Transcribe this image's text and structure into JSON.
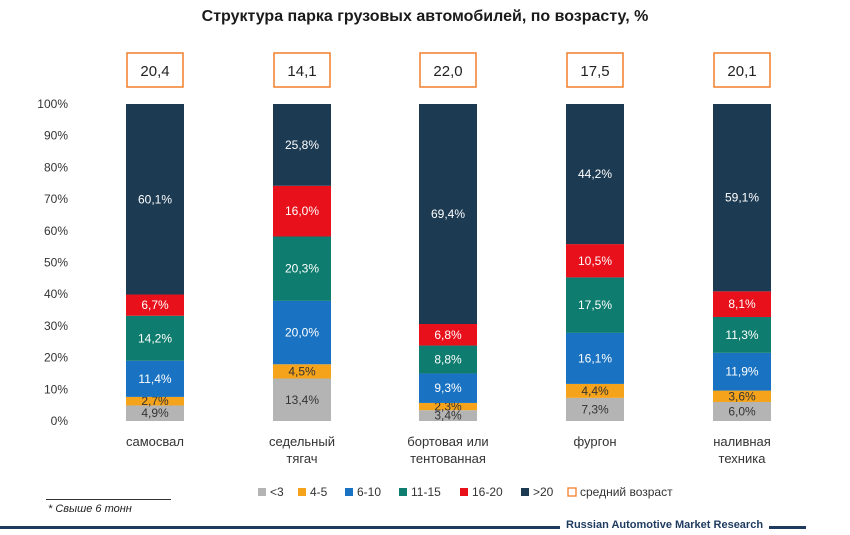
{
  "chart_data": {
    "type": "bar",
    "stacked": true,
    "title": "Структура парка грузовых автомобилей, по возрасту, %",
    "categories": [
      [
        "самосвал"
      ],
      [
        "седельный",
        "тягач"
      ],
      [
        "бортовая или",
        "тентованная"
      ],
      [
        "фургон"
      ],
      [
        "наливная",
        "техника"
      ]
    ],
    "series": [
      {
        "name": "<3",
        "color": "#b4b4b4",
        "values": [
          4.9,
          13.4,
          3.4,
          7.3,
          6.0
        ]
      },
      {
        "name": "4-5",
        "color": "#f5a31a",
        "values": [
          2.7,
          4.5,
          2.3,
          4.4,
          3.6
        ]
      },
      {
        "name": "6-10",
        "color": "#1a73c2",
        "values": [
          11.4,
          20.0,
          9.3,
          16.1,
          11.9
        ]
      },
      {
        "name": "11-15",
        "color": "#0e7c6e",
        "values": [
          14.2,
          20.3,
          8.8,
          17.5,
          11.3
        ]
      },
      {
        "name": "16-20",
        "color": "#e8101a",
        "values": [
          6.7,
          16.0,
          6.8,
          10.5,
          8.1
        ]
      },
      {
        "name": ">20",
        "color": "#1c3a52",
        "values": [
          60.1,
          25.8,
          69.4,
          44.2,
          59.1
        ]
      }
    ],
    "data_labels": [
      [
        "4,9%",
        "13,4%",
        "3,4%",
        "7,3%",
        "6,0%"
      ],
      [
        "2,7%",
        "4,5%",
        "2,3%",
        "4,4%",
        "3,6%"
      ],
      [
        "11,4%",
        "20,0%",
        "9,3%",
        "16,1%",
        "11,9%"
      ],
      [
        "14,2%",
        "20,3%",
        "8,8%",
        "17,5%",
        "11,3%"
      ],
      [
        "6,7%",
        "16,0%",
        "6,8%",
        "10,5%",
        "8,1%"
      ],
      [
        "60,1%",
        "25,8%",
        "69,4%",
        "44,2%",
        "59,1%"
      ]
    ],
    "average_age": {
      "name": "средний возраст",
      "color": "#f07f2a",
      "values": [
        20.4,
        14.1,
        22.0,
        17.5,
        20.1
      ],
      "labels": [
        "20,4",
        "14,1",
        "22,0",
        "17,5",
        "20,1"
      ]
    },
    "ylim": [
      0,
      100
    ],
    "yticks": [
      "0%",
      "10%",
      "20%",
      "30%",
      "40%",
      "50%",
      "60%",
      "70%",
      "80%",
      "90%",
      "100%"
    ],
    "grid": false,
    "legend_position": "bottom"
  },
  "footnote": "* Свыше 6 тонн",
  "source": "Russian Automotive Market Research"
}
